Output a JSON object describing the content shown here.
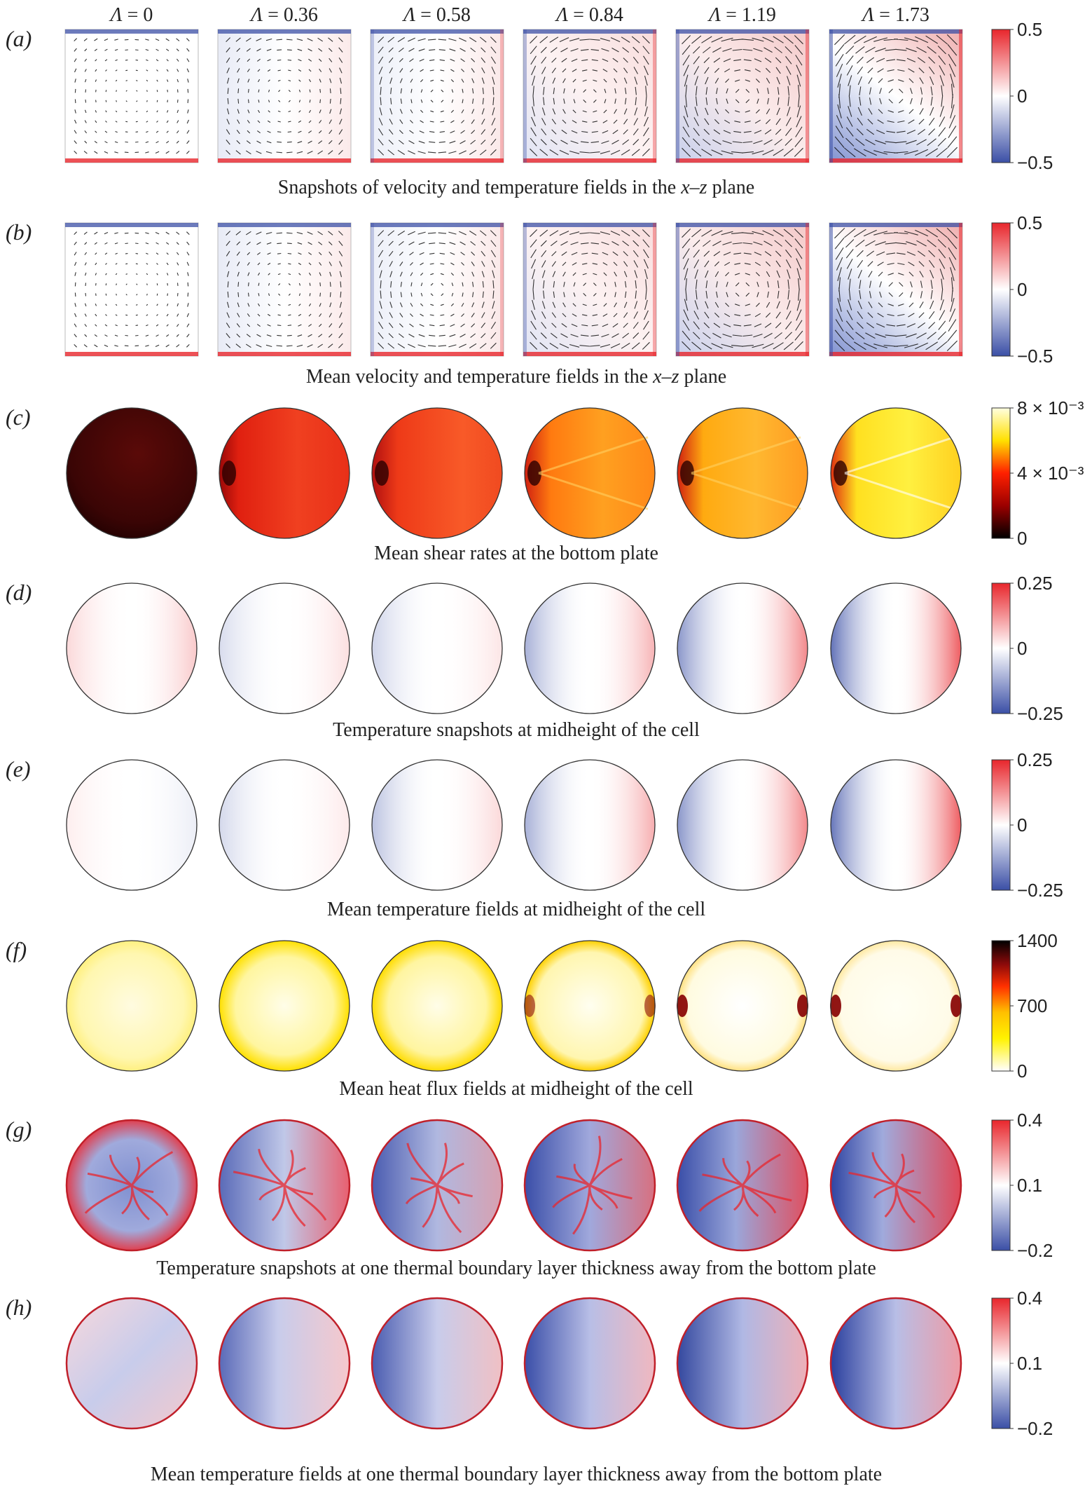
{
  "columns": {
    "symbol": "Λ",
    "values": [
      "0",
      "0.36",
      "0.58",
      "0.84",
      "1.19",
      "1.73"
    ]
  },
  "panels": [
    {
      "id": "a",
      "label": "(a)",
      "shape": "square",
      "cmap": "diverging",
      "arrows": true,
      "caption_parts": [
        {
          "t": "Snapshots of velocity and temperature fields in the ",
          "i": false
        },
        {
          "t": "x",
          "i": true
        },
        {
          "t": "–",
          "i": false
        },
        {
          "t": "z",
          "i": true
        },
        {
          "t": " plane",
          "i": false
        }
      ],
      "colorbar": {
        "ticks": [
          "0.5",
          "0",
          "−0.5"
        ]
      }
    },
    {
      "id": "b",
      "label": "(b)",
      "shape": "square",
      "cmap": "diverging",
      "arrows": true,
      "caption_parts": [
        {
          "t": "Mean velocity and temperature fields in the ",
          "i": false
        },
        {
          "t": "x",
          "i": true
        },
        {
          "t": "–",
          "i": false
        },
        {
          "t": "z",
          "i": true
        },
        {
          "t": " plane",
          "i": false
        }
      ],
      "colorbar": {
        "ticks": [
          "0.5",
          "0",
          "−0.5"
        ]
      }
    },
    {
      "id": "c",
      "label": "(c)",
      "shape": "circle",
      "cmap": "hot",
      "caption_parts": [
        {
          "t": "Mean shear rates at the bottom plate",
          "i": false
        }
      ],
      "colorbar": {
        "ticks": [
          "8 × 10⁻³",
          "4 × 10⁻³",
          "0"
        ]
      }
    },
    {
      "id": "d",
      "label": "(d)",
      "shape": "circle",
      "cmap": "diverging",
      "caption_parts": [
        {
          "t": "Temperature snapshots at midheight of the cell",
          "i": false
        }
      ],
      "colorbar": {
        "ticks": [
          "0.25",
          "0",
          "−0.25"
        ]
      }
    },
    {
      "id": "e",
      "label": "(e)",
      "shape": "circle",
      "cmap": "diverging",
      "caption_parts": [
        {
          "t": "Mean temperature fields at midheight of the cell",
          "i": false
        }
      ],
      "colorbar": {
        "ticks": [
          "0.25",
          "0",
          "−0.25"
        ]
      }
    },
    {
      "id": "f",
      "label": "(f)",
      "shape": "circle",
      "cmap": "heat",
      "caption_parts": [
        {
          "t": "Mean heat flux fields at midheight of the cell",
          "i": false
        }
      ],
      "colorbar": {
        "ticks": [
          "1400",
          "700",
          "0"
        ]
      }
    },
    {
      "id": "g",
      "label": "(g)",
      "shape": "circle",
      "cmap": "diverging",
      "caption_parts": [
        {
          "t": "Temperature snapshots at one thermal boundary layer thickness away from the bottom plate",
          "i": false
        }
      ],
      "colorbar": {
        "ticks": [
          "0.4",
          "0.1",
          "−0.2"
        ]
      }
    },
    {
      "id": "h",
      "label": "(h)",
      "shape": "circle",
      "cmap": "diverging",
      "caption_parts": [
        {
          "t": "Mean temperature fields at one thermal boundary layer thickness away from the bottom plate",
          "i": false
        }
      ],
      "colorbar": {
        "ticks": [
          "0.4",
          "0.1",
          "−0.2"
        ]
      }
    }
  ],
  "colors": {
    "red": "#e8262c",
    "blue": "#3b4fa6",
    "white": "#ffffff",
    "black": "#000000",
    "dark_red": "#8b0a0a",
    "yellow": "#fff200",
    "pale_yellow": "#fffbe0"
  }
}
